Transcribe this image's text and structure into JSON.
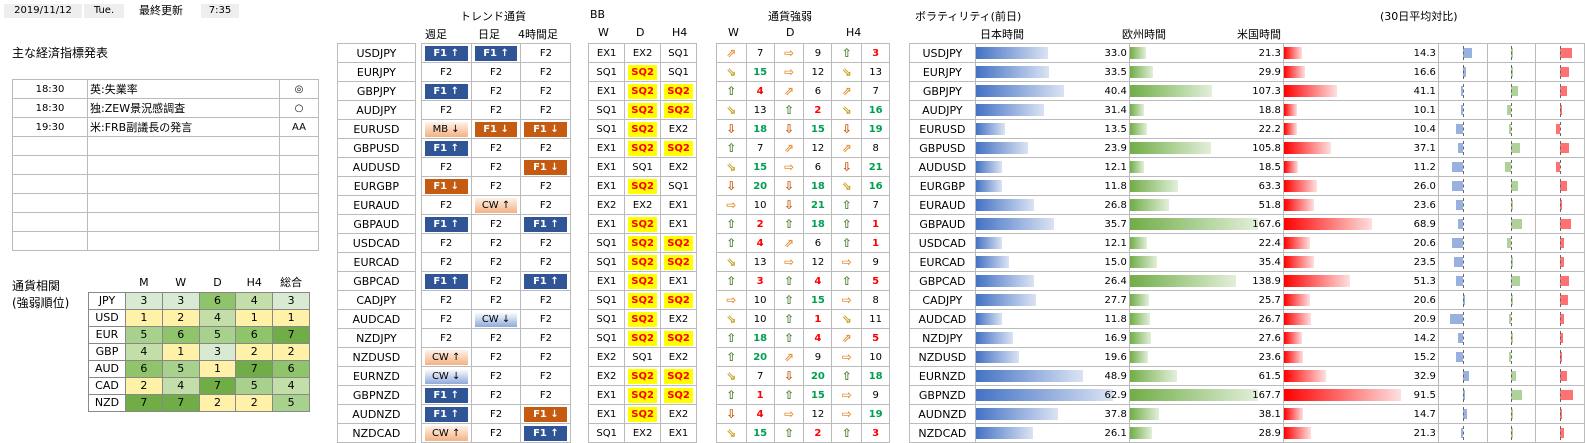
{
  "header": {
    "date": "2019/11/12",
    "weekday": "Tue.",
    "update_label": "最終更新",
    "update_time": "7:35"
  },
  "econ": {
    "title": "主な経済指標発表",
    "rows": [
      {
        "time": "18:30",
        "event": "英:失業率",
        "mark": "◎"
      },
      {
        "time": "18:30",
        "event": "独:ZEW景況感調査",
        "mark": "○"
      },
      {
        "time": "19:30",
        "event": "米:FRB副議長の発言",
        "mark": "AA"
      },
      {
        "time": "",
        "event": "",
        "mark": ""
      },
      {
        "time": "",
        "event": "",
        "mark": ""
      },
      {
        "time": "",
        "event": "",
        "mark": ""
      },
      {
        "time": "",
        "event": "",
        "mark": ""
      },
      {
        "time": "",
        "event": "",
        "mark": ""
      },
      {
        "time": "",
        "event": "",
        "mark": ""
      }
    ]
  },
  "corr": {
    "title1": "通貨相関",
    "title2": "(強弱順位)",
    "cols": [
      "M",
      "W",
      "D",
      "H4",
      "総合"
    ],
    "rows": [
      {
        "cur": "JPY",
        "vals": [
          3,
          3,
          6,
          4,
          3
        ]
      },
      {
        "cur": "USD",
        "vals": [
          1,
          2,
          4,
          1,
          1
        ]
      },
      {
        "cur": "EUR",
        "vals": [
          5,
          6,
          5,
          6,
          7
        ]
      },
      {
        "cur": "GBP",
        "vals": [
          4,
          1,
          3,
          2,
          2
        ]
      },
      {
        "cur": "AUD",
        "vals": [
          6,
          5,
          1,
          7,
          6
        ]
      },
      {
        "cur": "CAD",
        "vals": [
          2,
          4,
          7,
          5,
          4
        ]
      },
      {
        "cur": "NZD",
        "vals": [
          7,
          7,
          2,
          2,
          5
        ]
      }
    ]
  },
  "trend": {
    "title": "トレンド通貨",
    "cols": [
      "週足",
      "日足",
      "4時間足"
    ]
  },
  "bb": {
    "title": "BB",
    "cols": [
      "W",
      "D",
      "H4"
    ]
  },
  "strength": {
    "title": "通貨強弱",
    "cols": [
      "W",
      "D",
      "H4"
    ]
  },
  "vol": {
    "title": "ボラティリティ(前日)",
    "sub": "(30日平均対比)",
    "cols": [
      "日本時間",
      "欧州時間",
      "米国時間"
    ]
  },
  "pairs": [
    {
      "p": "USDJPY",
      "t": [
        "F1 ↑",
        "F1 ↑",
        "F2"
      ],
      "bb": [
        "EX1",
        "EX2",
        "SQ1"
      ],
      "s": [
        [
          "aUR",
          "7",
          "nB"
        ],
        [
          "aR",
          "9",
          "nB"
        ],
        [
          "aU",
          "3",
          "nR"
        ]
      ],
      "v": [
        33.0,
        21.3,
        14.3
      ],
      "m": [
        0.45,
        0.1,
        0.55
      ]
    },
    {
      "p": "EURJPY",
      "t": [
        "F2",
        "F2",
        "F2"
      ],
      "bb": [
        "SQ1",
        "SQ2",
        "SQ1"
      ],
      "s": [
        [
          "aDR",
          "15",
          "nG"
        ],
        [
          "aR",
          "12",
          "nB"
        ],
        [
          "aDR",
          "13",
          "nB"
        ]
      ],
      "v": [
        33.5,
        29.9,
        16.6
      ],
      "m": [
        0.15,
        0.05,
        0.4
      ]
    },
    {
      "p": "GBPJPY",
      "t": [
        "F1 ↑",
        "F2",
        "F2"
      ],
      "bb": [
        "EX1",
        "SQ2",
        "SQ2"
      ],
      "s": [
        [
          "aU",
          "4",
          "nR"
        ],
        [
          "aUR",
          "6",
          "nB"
        ],
        [
          "aUR",
          "7",
          "nB"
        ]
      ],
      "v": [
        40.4,
        107.3,
        41.1
      ],
      "m": [
        -0.1,
        0.3,
        0.3
      ]
    },
    {
      "p": "AUDJPY",
      "t": [
        "F2",
        "F2",
        "F2"
      ],
      "bb": [
        "SQ1",
        "SQ2",
        "SQ2"
      ],
      "s": [
        [
          "aDR",
          "13",
          "nB"
        ],
        [
          "aU",
          "2",
          "nR"
        ],
        [
          "aDR",
          "16",
          "nG"
        ]
      ],
      "v": [
        31.4,
        18.8,
        10.1
      ],
      "m": [
        -0.1,
        -0.2,
        0.1
      ]
    },
    {
      "p": "EURUSD",
      "t": [
        "MB ↓",
        "F1 ↓",
        "F1 ↓"
      ],
      "bb": [
        "SQ1",
        "SQ2",
        "EX2"
      ],
      "s": [
        [
          "aD",
          "18",
          "nG"
        ],
        [
          "aD",
          "15",
          "nG"
        ],
        [
          "aD",
          "19",
          "nG"
        ]
      ],
      "v": [
        13.5,
        22.2,
        10.4
      ],
      "m": [
        -0.3,
        -0.1,
        -0.2
      ]
    },
    {
      "p": "GBPUSD",
      "t": [
        "F1 ↑",
        "F2",
        "F2"
      ],
      "bb": [
        "EX1",
        "SQ2",
        "SQ2"
      ],
      "s": [
        [
          "aU",
          "7",
          "nB"
        ],
        [
          "aUR",
          "12",
          "nB"
        ],
        [
          "aUR",
          "8",
          "nB"
        ]
      ],
      "v": [
        23.9,
        105.8,
        37.1
      ],
      "m": [
        -0.2,
        0.4,
        0.4
      ]
    },
    {
      "p": "AUDUSD",
      "t": [
        "F2",
        "F2",
        "F1 ↓"
      ],
      "bb": [
        "EX1",
        "SQ1",
        "EX2"
      ],
      "s": [
        [
          "aDR",
          "15",
          "nG"
        ],
        [
          "aR",
          "6",
          "nB"
        ],
        [
          "aD",
          "21",
          "nG"
        ]
      ],
      "v": [
        12.1,
        18.5,
        11.2
      ],
      "m": [
        -0.5,
        -0.3,
        -0.2
      ]
    },
    {
      "p": "EURGBP",
      "t": [
        "F1 ↓",
        "F2",
        "F2"
      ],
      "bb": [
        "EX1",
        "SQ2",
        "SQ1"
      ],
      "s": [
        [
          "aD",
          "20",
          "nG"
        ],
        [
          "aD",
          "18",
          "nG"
        ],
        [
          "aDR",
          "16",
          "nG"
        ]
      ],
      "v": [
        11.8,
        63.3,
        26.0
      ],
      "m": [
        -0.5,
        0.3,
        0.3
      ]
    },
    {
      "p": "EURAUD",
      "t": [
        "F2",
        "CW ↑",
        "F2"
      ],
      "bb": [
        "EX2",
        "EX2",
        "EX1"
      ],
      "s": [
        [
          "aR",
          "10",
          "nB"
        ],
        [
          "aD",
          "21",
          "nG"
        ],
        [
          "aU",
          "7",
          "nB"
        ]
      ],
      "v": [
        26.8,
        51.8,
        23.6
      ],
      "m": [
        -0.3,
        0.1,
        0.1
      ]
    },
    {
      "p": "GBPAUD",
      "t": [
        "F1 ↑",
        "F2",
        "F1 ↑"
      ],
      "bb": [
        "EX1",
        "SQ2",
        "EX1"
      ],
      "s": [
        [
          "aU",
          "2",
          "nR"
        ],
        [
          "aU",
          "18",
          "nG"
        ],
        [
          "aU",
          "1",
          "nR"
        ]
      ],
      "v": [
        35.7,
        167.6,
        68.9
      ],
      "m": [
        -0.2,
        0.5,
        0.5
      ]
    },
    {
      "p": "USDCAD",
      "t": [
        "F2",
        "F2",
        "F2"
      ],
      "bb": [
        "SQ1",
        "SQ2",
        "SQ2"
      ],
      "s": [
        [
          "aU",
          "4",
          "nR"
        ],
        [
          "aUR",
          "6",
          "nB"
        ],
        [
          "aU",
          "1",
          "nR"
        ]
      ],
      "v": [
        12.1,
        22.4,
        20.6
      ],
      "m": [
        -0.5,
        -0.2,
        0.2
      ]
    },
    {
      "p": "EURCAD",
      "t": [
        "F2",
        "F2",
        "F2"
      ],
      "bb": [
        "SQ1",
        "SQ2",
        "SQ2"
      ],
      "s": [
        [
          "aDR",
          "13",
          "nB"
        ],
        [
          "aR",
          "12",
          "nB"
        ],
        [
          "aR",
          "9",
          "nB"
        ]
      ],
      "v": [
        15.0,
        35.4,
        23.5
      ],
      "m": [
        -0.4,
        0.1,
        0.2
      ]
    },
    {
      "p": "GBPCAD",
      "t": [
        "F1 ↑",
        "F2",
        "F1 ↑"
      ],
      "bb": [
        "EX1",
        "SQ2",
        "EX1"
      ],
      "s": [
        [
          "aU",
          "3",
          "nR"
        ],
        [
          "aU",
          "4",
          "nR"
        ],
        [
          "aU",
          "5",
          "nR"
        ]
      ],
      "v": [
        26.4,
        138.9,
        51.3
      ],
      "m": [
        -0.3,
        0.4,
        0.4
      ]
    },
    {
      "p": "CADJPY",
      "t": [
        "F2",
        "F2",
        "F2"
      ],
      "bb": [
        "SQ1",
        "SQ2",
        "SQ2"
      ],
      "s": [
        [
          "aR",
          "10",
          "nB"
        ],
        [
          "aU",
          "15",
          "nG"
        ],
        [
          "aR",
          "8",
          "nB"
        ]
      ],
      "v": [
        27.7,
        25.7,
        20.6
      ],
      "m": [
        0.1,
        0.05,
        0.35
      ]
    },
    {
      "p": "AUDCAD",
      "t": [
        "F2",
        "CW ↓",
        "F2"
      ],
      "bb": [
        "SQ1",
        "SQ2",
        "EX2"
      ],
      "s": [
        [
          "aDR",
          "10",
          "nB"
        ],
        [
          "aU",
          "1",
          "nR"
        ],
        [
          "aDR",
          "11",
          "nB"
        ]
      ],
      "v": [
        11.8,
        26.7,
        20.9
      ],
      "m": [
        -0.6,
        -0.1,
        0.2
      ]
    },
    {
      "p": "NZDJPY",
      "t": [
        "F2",
        "F2",
        "F2"
      ],
      "bb": [
        "SQ1",
        "SQ2",
        "SQ2"
      ],
      "s": [
        [
          "aU",
          "18",
          "nG"
        ],
        [
          "aU",
          "4",
          "nR"
        ],
        [
          "aUR",
          "5",
          "nR"
        ]
      ],
      "v": [
        16.9,
        27.6,
        14.2
      ],
      "m": [
        -0.2,
        0.05,
        0.15
      ]
    },
    {
      "p": "NZDUSD",
      "t": [
        "CW ↑",
        "F2",
        "F2"
      ],
      "bb": [
        "EX2",
        "SQ1",
        "EX2"
      ],
      "s": [
        [
          "aU",
          "20",
          "nG"
        ],
        [
          "aUR",
          "9",
          "nB"
        ],
        [
          "aR",
          "10",
          "nB"
        ]
      ],
      "v": [
        19.6,
        23.6,
        15.2
      ],
      "m": [
        -0.3,
        -0.1,
        0.05
      ]
    },
    {
      "p": "EURNZD",
      "t": [
        "CW ↓",
        "F2",
        "F2"
      ],
      "bb": [
        "EX2",
        "SQ2",
        "SQ2"
      ],
      "s": [
        [
          "aDR",
          "7",
          "nB"
        ],
        [
          "aD",
          "20",
          "nG"
        ],
        [
          "aU",
          "18",
          "nG"
        ]
      ],
      "v": [
        48.9,
        61.5,
        32.9
      ],
      "m": [
        0.3,
        0.2,
        0.3
      ]
    },
    {
      "p": "GBPNZD",
      "t": [
        "F1 ↑",
        "F2",
        "F2"
      ],
      "bb": [
        "EX1",
        "SQ2",
        "SQ2"
      ],
      "s": [
        [
          "aU",
          "1",
          "nR"
        ],
        [
          "aU",
          "15",
          "nG"
        ],
        [
          "aR",
          "9",
          "nB"
        ]
      ],
      "v": [
        62.9,
        167.7,
        91.5
      ],
      "m": [
        0.1,
        0.5,
        0.6
      ]
    },
    {
      "p": "AUDNZD",
      "t": [
        "F1 ↑",
        "F2",
        "F1 ↓"
      ],
      "bb": [
        "EX1",
        "SQ2",
        "EX2"
      ],
      "s": [
        [
          "aD",
          "4",
          "nR"
        ],
        [
          "aR",
          "12",
          "nB"
        ],
        [
          "aR",
          "19",
          "nG"
        ]
      ],
      "v": [
        37.8,
        38.1,
        14.7
      ],
      "m": [
        0.2,
        0.1,
        0.05
      ]
    },
    {
      "p": "NZDCAD",
      "t": [
        "CW ↑",
        "F2",
        "F1 ↑"
      ],
      "bb": [
        "SQ1",
        "EX2",
        "EX1"
      ],
      "s": [
        [
          "aDR",
          "15",
          "nG"
        ],
        [
          "aU",
          "2",
          "nR"
        ],
        [
          "aU",
          "3",
          "nR"
        ]
      ],
      "v": [
        26.1,
        28.9,
        21.3
      ],
      "m": [
        -0.1,
        0.05,
        0.2
      ]
    }
  ],
  "colors": {
    "f1up": "#2f5597",
    "f1down": "#c55a11",
    "sq2": "#ffff00",
    "jp_bar": "#4472c4",
    "eu_bar": "#70ad47",
    "us_bar": "#ff0000"
  }
}
